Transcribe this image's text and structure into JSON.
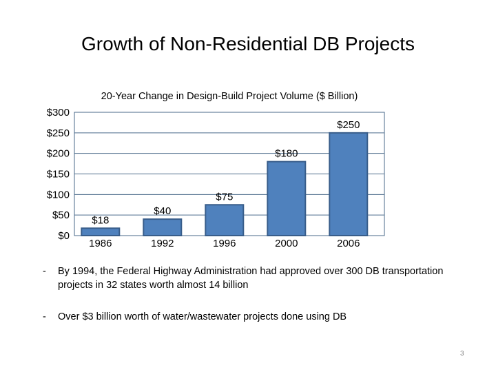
{
  "slide": {
    "title": "Growth of Non-Residential DB Projects",
    "bullets": [
      {
        "marker": "-",
        "text": "By 1994, the Federal Highway Administration had approved over 300 DB transportation projects in 32 states worth almost 14 billion"
      },
      {
        "marker": "-",
        "text": "Over $3 billion worth of water/wastewater projects done using DB"
      }
    ],
    "page_number": "3"
  },
  "chart_data": {
    "type": "bar",
    "title": "20-Year Change in Design-Build Project Volume ($ Billion)",
    "categories": [
      "1986",
      "1992",
      "1996",
      "2000",
      "2006"
    ],
    "values": [
      18,
      40,
      75,
      180,
      250
    ],
    "data_labels": [
      "$18",
      "$40",
      "$75",
      "$180",
      "$250"
    ],
    "yticks": [
      "$0",
      "$50",
      "$100",
      "$150",
      "$200",
      "$250",
      "$300"
    ],
    "ylim": [
      0,
      300
    ],
    "grid": true,
    "legend": "none",
    "bar_color": "#4F81BD",
    "bar_border": "#385D8A",
    "grid_color": "#4A6A8A"
  }
}
